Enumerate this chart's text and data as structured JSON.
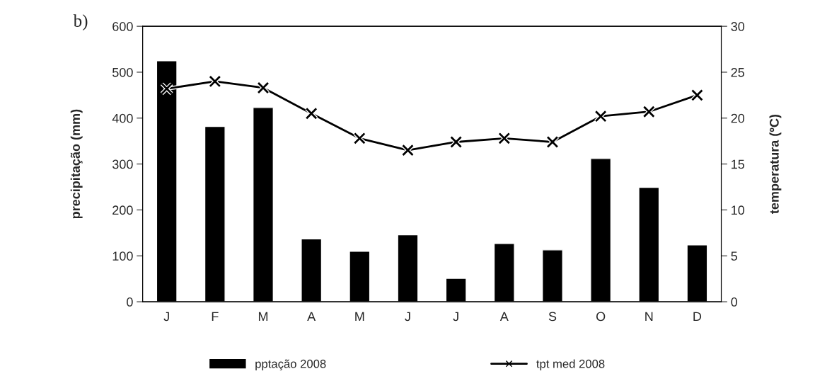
{
  "chart_data": {
    "type": "bar",
    "title": "b)",
    "ylabel": "precipitação (mm)",
    "y2label": "temperatura (ºC)",
    "categories": [
      "J",
      "F",
      "M",
      "A",
      "M",
      "J",
      "J",
      "A",
      "S",
      "O",
      "N",
      "D"
    ],
    "series": [
      {
        "name": "pptação 2008",
        "color": "#000000",
        "values": [
          525,
          382,
          423,
          137,
          110,
          146,
          51,
          127,
          113,
          312,
          249,
          124
        ]
      },
      {
        "name": "tpt med 2008",
        "type": "line",
        "axis": "y2",
        "color": "#000000",
        "marker": "cross",
        "values": [
          23.2,
          24.0,
          23.3,
          20.5,
          17.8,
          16.5,
          17.4,
          17.8,
          17.4,
          20.2,
          20.7,
          22.5
        ]
      }
    ],
    "ylim": [
      0,
      600
    ],
    "yticks": [
      0,
      100,
      200,
      300,
      400,
      500,
      600
    ],
    "y2lim": [
      0,
      30
    ],
    "y2ticks": [
      0,
      5,
      10,
      15,
      20,
      25,
      30
    ],
    "grid": false,
    "legend": "bottom"
  }
}
